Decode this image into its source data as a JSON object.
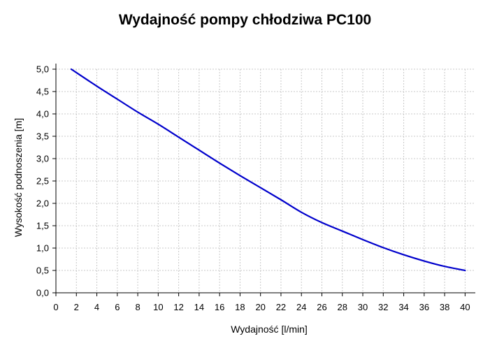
{
  "chart_data": {
    "type": "line",
    "title": "Wydajność pompy chłodziwa PC100",
    "xlabel": "Wydajność [l/min]",
    "ylabel": "Wysokość podnoszenia [m]",
    "xlim": [
      0,
      41
    ],
    "ylim": [
      0,
      5.0
    ],
    "x_ticks": [
      0,
      2,
      4,
      6,
      8,
      10,
      12,
      14,
      16,
      18,
      20,
      22,
      24,
      26,
      28,
      30,
      32,
      34,
      36,
      38,
      40
    ],
    "y_ticks": [
      0,
      0.5,
      1.0,
      1.5,
      2.0,
      2.5,
      3.0,
      3.5,
      4.0,
      4.5,
      5.0
    ],
    "x_tick_labels": [
      "0",
      "2",
      "4",
      "6",
      "8",
      "10",
      "12",
      "14",
      "16",
      "18",
      "20",
      "22",
      "24",
      "26",
      "28",
      "30",
      "32",
      "34",
      "36",
      "38",
      "40"
    ],
    "y_tick_labels": [
      "0,0",
      "0,5",
      "1,0",
      "1,5",
      "2,0",
      "2,5",
      "3,0",
      "3,5",
      "4,0",
      "4,5",
      "5,0"
    ],
    "grid": true,
    "line_color": "#0000cc",
    "series": [
      {
        "x": [
          1.5,
          4,
          6,
          8,
          10,
          12,
          14,
          16,
          18,
          20,
          22,
          24,
          26,
          28,
          30,
          32,
          34,
          36,
          38,
          40
        ],
        "values": [
          5.0,
          4.62,
          4.33,
          4.04,
          3.77,
          3.48,
          3.19,
          2.9,
          2.62,
          2.35,
          2.08,
          1.8,
          1.57,
          1.38,
          1.19,
          1.01,
          0.85,
          0.71,
          0.59,
          0.5
        ]
      }
    ]
  }
}
